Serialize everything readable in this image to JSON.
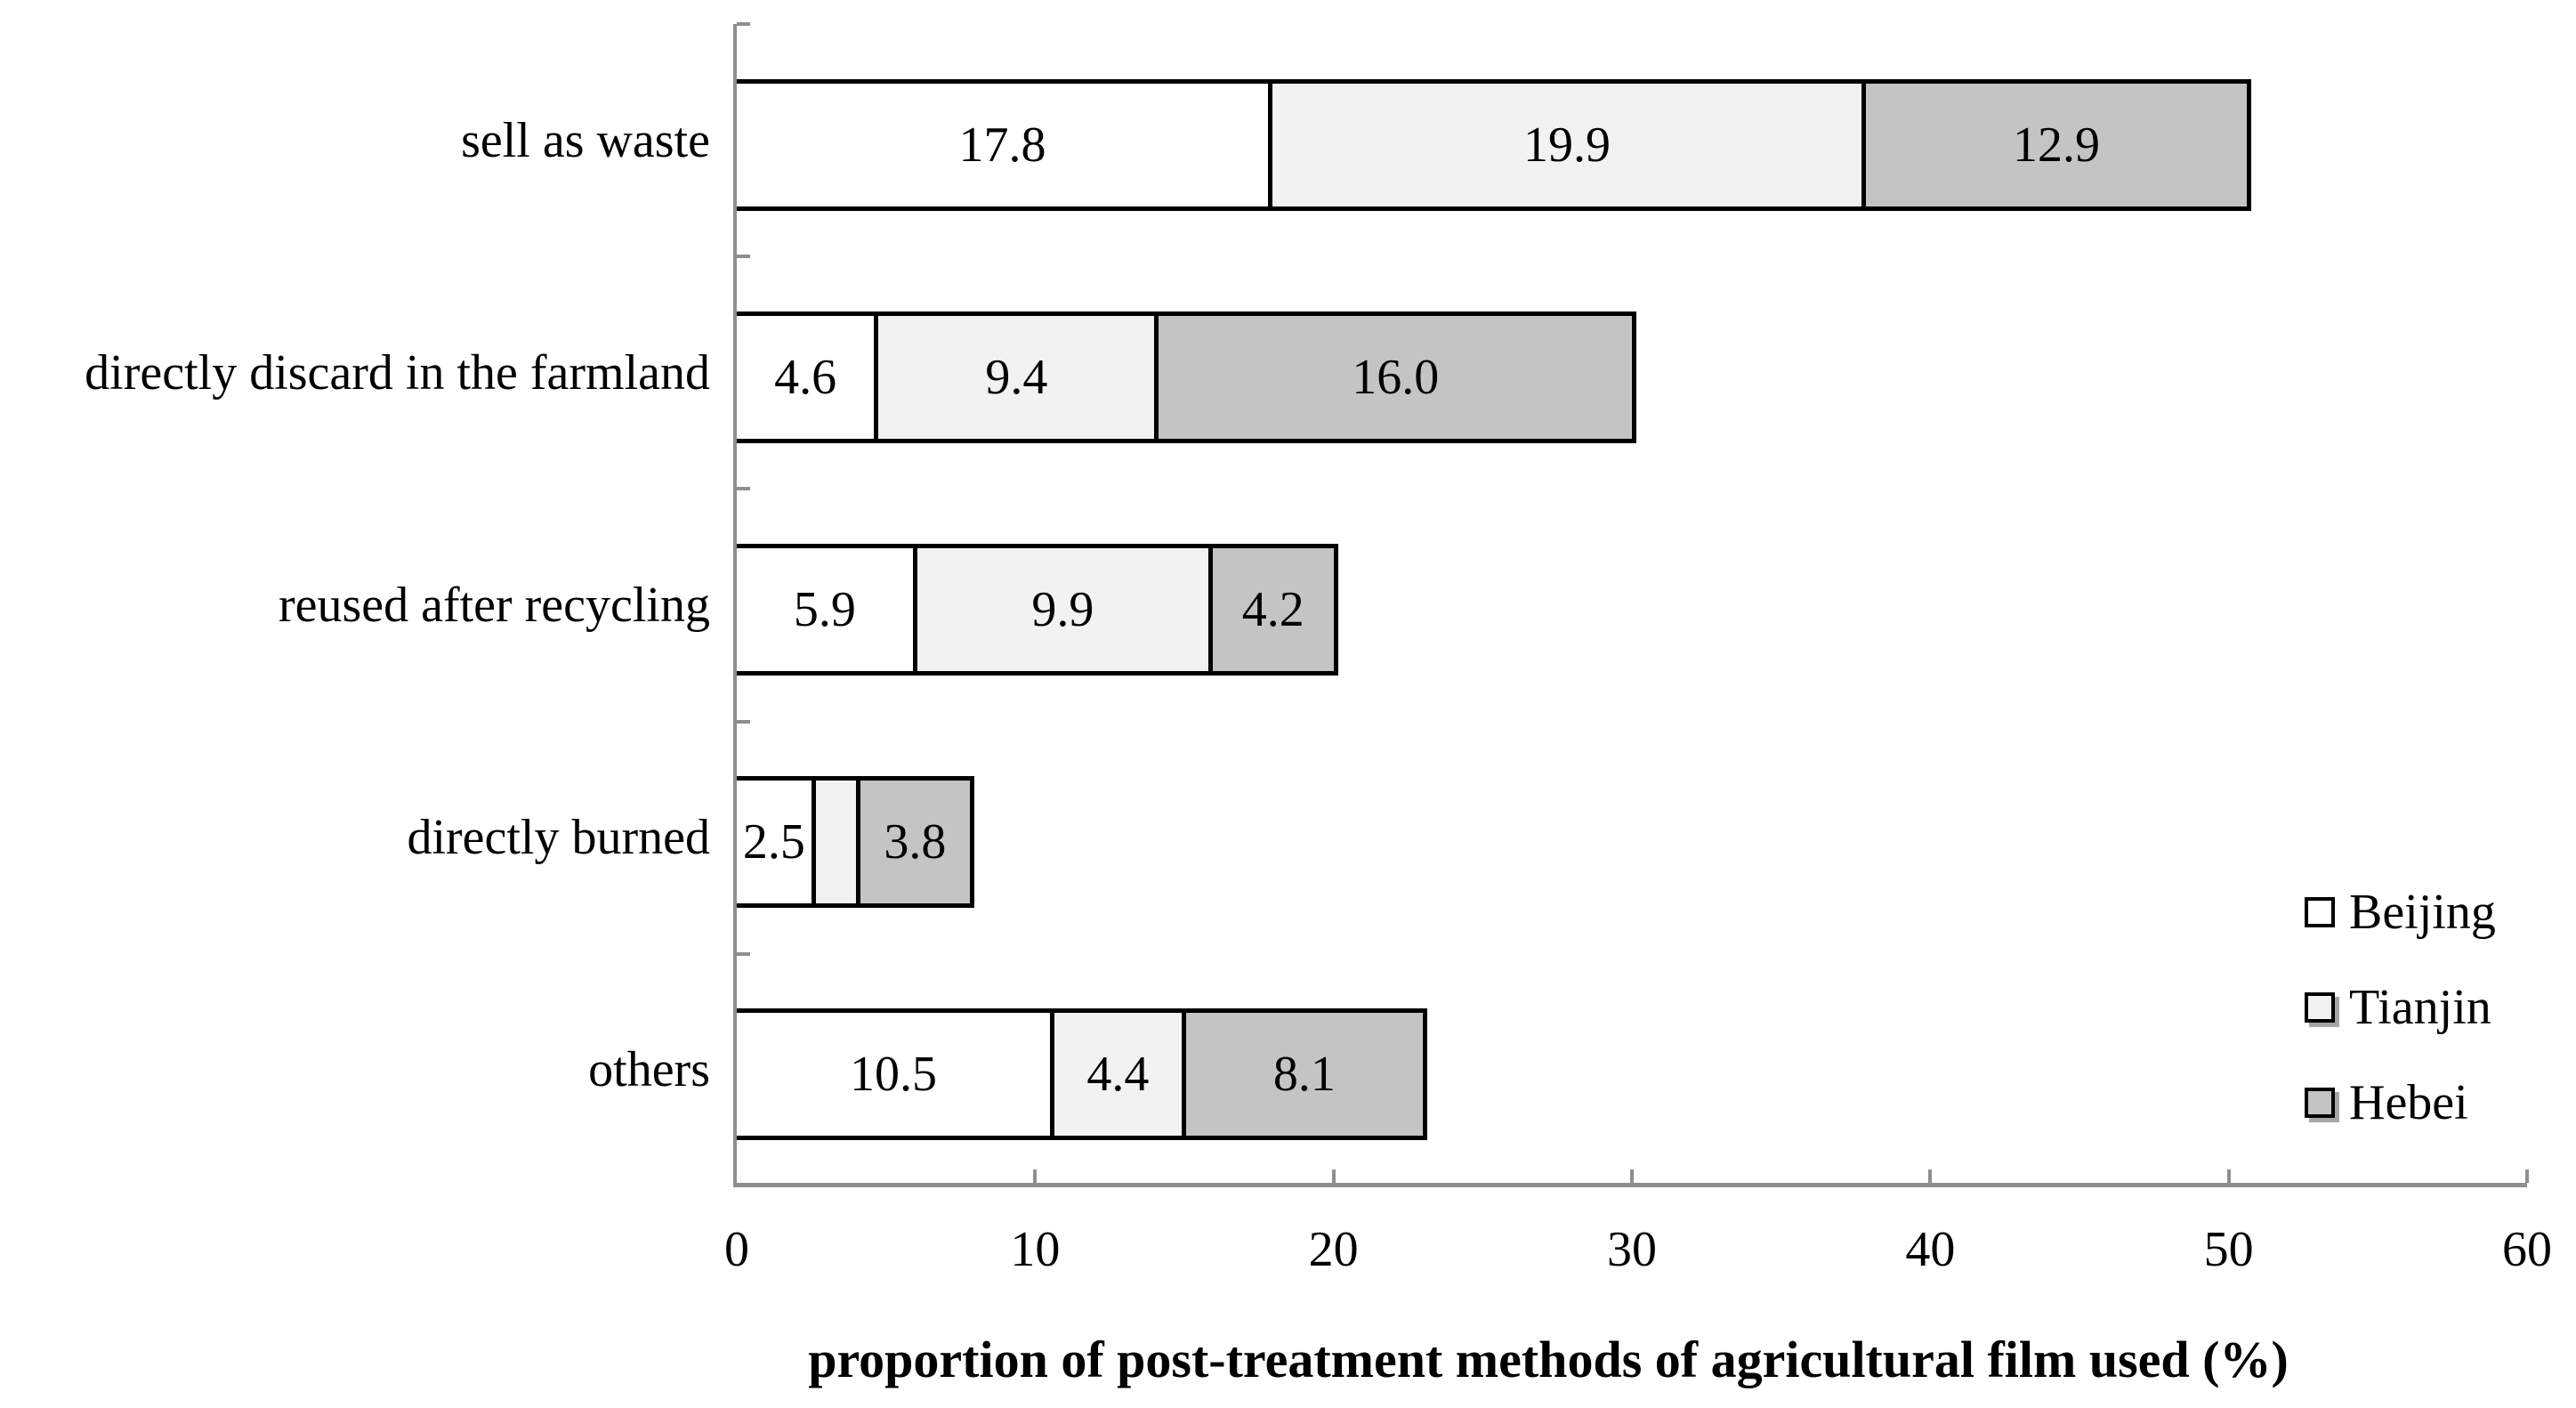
{
  "chart_data": {
    "type": "bar",
    "orientation": "horizontal",
    "stacked": true,
    "title": "",
    "xlabel": "proportion of post-treatment methods of agricultural film used (%)",
    "ylabel": "",
    "xlim": [
      0,
      60
    ],
    "x_ticks": [
      0,
      10,
      20,
      30,
      40,
      50,
      60
    ],
    "grid": false,
    "legend_position": "inside-right-bottom",
    "axis_color": "#8e8e8e",
    "bar_border_color": "#000000",
    "categories": [
      "sell as waste",
      "directly discard in the farmland",
      "reused after recycling",
      "directly burned",
      "others"
    ],
    "series": [
      {
        "name": "Beijing",
        "color": "#ffffff",
        "values": [
          17.8,
          4.6,
          5.9,
          2.5,
          10.5
        ],
        "data_labels": [
          "17.8",
          "4.6",
          "5.9",
          "2.5",
          "10.5"
        ]
      },
      {
        "name": "Tianjin",
        "color": "#f2f2f2",
        "values": [
          19.9,
          9.4,
          9.9,
          1.5,
          4.4
        ],
        "data_labels": [
          "19.9",
          "9.4",
          "9.9",
          "",
          "4.4"
        ]
      },
      {
        "name": "Hebei",
        "color": "#c4c4c4",
        "values": [
          12.9,
          16.0,
          4.2,
          3.8,
          8.1
        ],
        "data_labels": [
          "12.9",
          "16.0",
          "4.2",
          "3.8",
          "8.1"
        ]
      }
    ]
  }
}
